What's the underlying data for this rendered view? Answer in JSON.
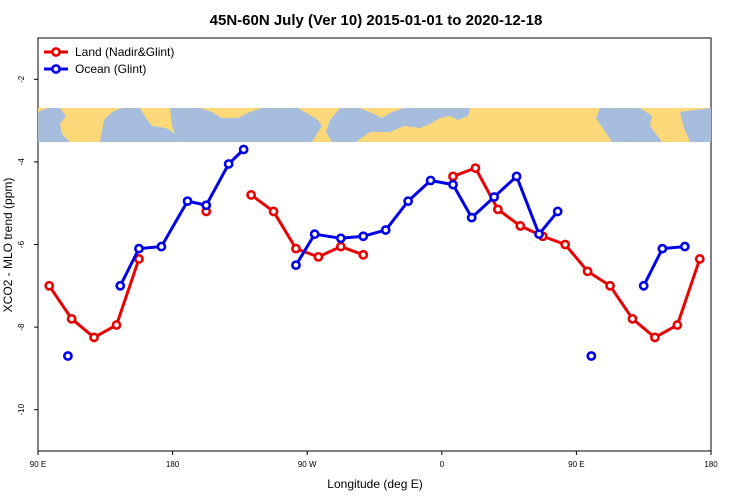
{
  "chart_data": {
    "type": "line",
    "title": "45N-60N July (Ver 10)   2015-01-01 to 2020-12-18",
    "xlabel": "Longitude (deg E)",
    "ylabel": "XCO2 - MLO trend (ppm)",
    "xlim": [
      90,
      540
    ],
    "ylim": [
      -11,
      -1
    ],
    "x_ticks": [
      {
        "value": 90,
        "label": "90 E"
      },
      {
        "value": 180,
        "label": "180"
      },
      {
        "value": 270,
        "label": "90 W"
      },
      {
        "value": 360,
        "label": "0"
      },
      {
        "value": 450,
        "label": "90 E"
      },
      {
        "value": 540,
        "label": "180"
      }
    ],
    "y_ticks": [
      {
        "value": -2,
        "label": "-2"
      },
      {
        "value": -4,
        "label": "-4"
      },
      {
        "value": -6,
        "label": "-6"
      },
      {
        "value": -8,
        "label": "-8"
      },
      {
        "value": -10,
        "label": "-10"
      }
    ],
    "grid": false,
    "legend_position": "top-left",
    "background_map": {
      "land_color": "#fdd878",
      "ocean_color": "#a7bddd"
    },
    "series": [
      {
        "name": "Land (Nadir&Glint)",
        "color": "#e60000",
        "segments": [
          [
            [
              97.5,
              -7.0
            ],
            [
              112.5,
              -7.8
            ],
            [
              127.5,
              -8.25
            ],
            [
              142.5,
              -7.95
            ],
            [
              157.5,
              -6.35
            ]
          ],
          [
            [
              202.5,
              -5.2
            ]
          ],
          [
            [
              232.5,
              -4.8
            ],
            [
              247.5,
              -5.2
            ],
            [
              262.5,
              -6.1
            ],
            [
              277.5,
              -6.3
            ],
            [
              292.5,
              -6.05
            ],
            [
              307.5,
              -6.25
            ]
          ],
          [
            [
              367.5,
              -4.35
            ],
            [
              382.5,
              -4.15
            ],
            [
              397.5,
              -5.15
            ],
            [
              412.5,
              -5.55
            ],
            [
              427.5,
              -5.8
            ],
            [
              442.5,
              -6.0
            ],
            [
              457.5,
              -6.65
            ],
            [
              472.5,
              -7.0
            ],
            [
              487.5,
              -7.8
            ],
            [
              502.5,
              -8.25
            ],
            [
              517.5,
              -7.95
            ],
            [
              532.5,
              -6.35
            ]
          ]
        ]
      },
      {
        "name": "Ocean (Glint)",
        "color": "#0000e6",
        "segments": [
          [
            [
              110,
              -8.7
            ]
          ],
          [
            [
              145,
              -7.0
            ],
            [
              157.5,
              -6.1
            ],
            [
              172.5,
              -6.05
            ],
            [
              190,
              -4.95
            ],
            [
              202.5,
              -5.05
            ],
            [
              217.5,
              -4.05
            ],
            [
              227.5,
              -3.7
            ]
          ],
          [
            [
              262.5,
              -6.5
            ],
            [
              275,
              -5.75
            ],
            [
              292.5,
              -5.85
            ],
            [
              307.5,
              -5.8
            ],
            [
              322.5,
              -5.65
            ],
            [
              337.5,
              -4.95
            ],
            [
              352.5,
              -4.45
            ],
            [
              367.5,
              -4.55
            ],
            [
              380,
              -5.35
            ],
            [
              395,
              -4.85
            ],
            [
              410,
              -4.35
            ],
            [
              425,
              -5.75
            ],
            [
              437.5,
              -5.2
            ]
          ],
          [
            [
              460,
              -8.7
            ]
          ],
          [
            [
              495,
              -7.0
            ],
            [
              507.5,
              -6.1
            ],
            [
              522.5,
              -6.05
            ]
          ]
        ]
      }
    ]
  }
}
